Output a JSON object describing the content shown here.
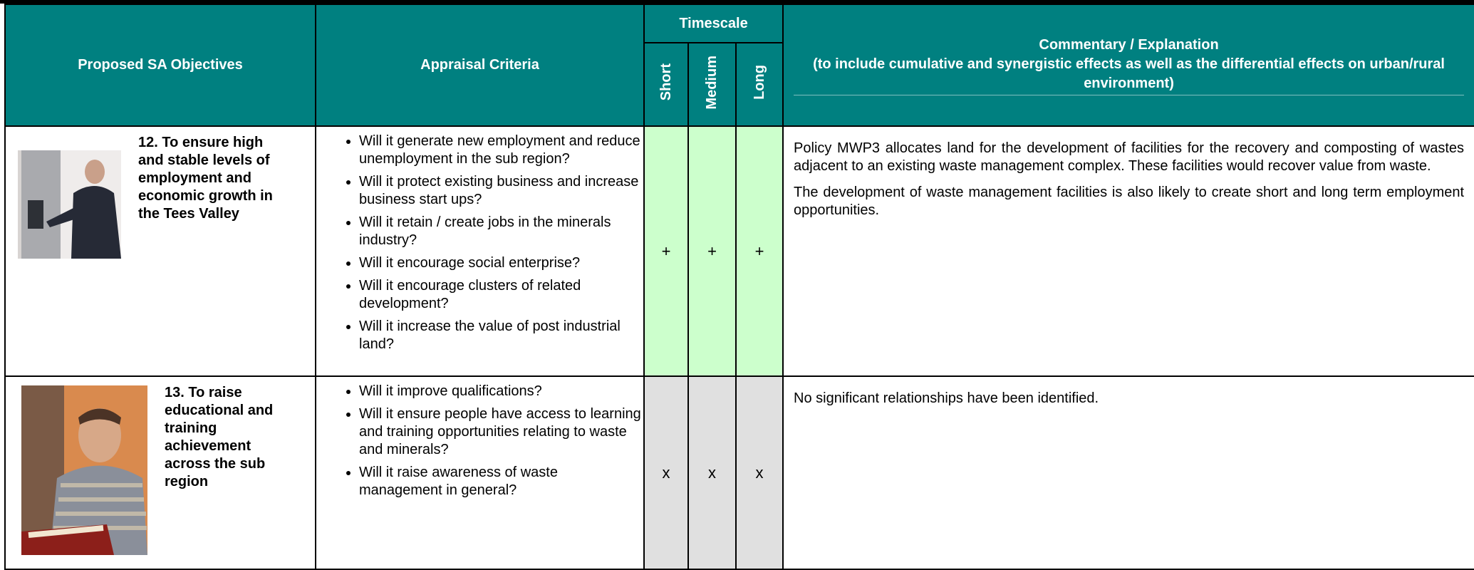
{
  "header": {
    "objectives": "Proposed SA Objectives",
    "criteria": "Appraisal Criteria",
    "timescale": "Timescale",
    "short": "Short",
    "medium": "Medium",
    "long": "Long",
    "commentary": "Commentary / Explanation",
    "commentary_note": "(to include cumulative and synergistic effects as well as the differential effects on urban/rural environment)"
  },
  "rows": [
    {
      "objective": "12. To ensure high and stable levels of employment and economic growth in the Tees Valley",
      "criteria": [
        "Will it generate new employment and reduce unemployment in the sub region?",
        "Will it protect existing business and increase business start ups?",
        "Will it retain / create jobs in the minerals industry?",
        "Will it encourage social enterprise?",
        "Will it encourage clusters of related development?",
        "Will it increase the value of post industrial land?"
      ],
      "scores": [
        "+",
        "+",
        "+"
      ],
      "commentary": [
        "Policy MWP3 allocates land for the development of facilities for the recovery and composting of wastes adjacent to an existing waste management complex. These facilities would recover value from waste.",
        "The development of waste management facilities is also likely to create short and long term employment opportunities."
      ]
    },
    {
      "objective": "13. To raise educational and training achievement across the sub region",
      "criteria": [
        "Will it improve qualifications?",
        "Will it ensure people have access to learning and training opportunities relating to waste and minerals?",
        "Will it raise awareness of waste management in general?"
      ],
      "scores": [
        "x",
        "x",
        "x"
      ],
      "commentary": [
        "No significant relationships have been identified."
      ]
    }
  ]
}
